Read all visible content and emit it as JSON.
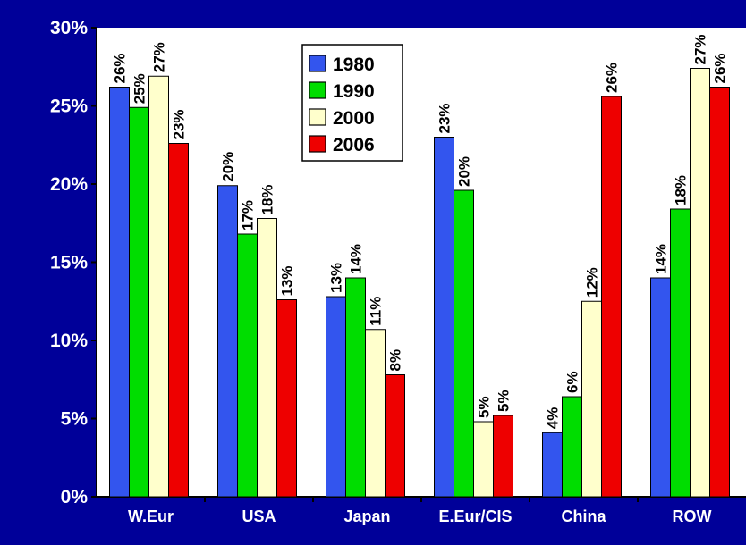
{
  "chart_data": {
    "type": "bar",
    "title": "",
    "xlabel": "",
    "ylabel": "",
    "categories": [
      "W.Eur",
      "USA",
      "Japan",
      "E.Eur/CIS",
      "China",
      "ROW"
    ],
    "series": [
      {
        "name": "1980",
        "color": "#3355ee",
        "values": [
          26.2,
          19.9,
          12.8,
          23.0,
          4.1,
          14.0
        ],
        "labels": [
          "26%",
          "20%",
          "13%",
          "23%",
          "4%",
          "14%"
        ]
      },
      {
        "name": "1990",
        "color": "#00dd00",
        "values": [
          24.9,
          16.8,
          14.0,
          19.6,
          6.4,
          18.4
        ],
        "labels": [
          "25%",
          "17%",
          "14%",
          "20%",
          "6%",
          "18%"
        ]
      },
      {
        "name": "2000",
        "color": "#ffffcc",
        "values": [
          26.9,
          17.8,
          10.7,
          4.8,
          12.5,
          27.4
        ],
        "labels": [
          "27%",
          "18%",
          "11%",
          "5%",
          "12%",
          "27%"
        ]
      },
      {
        "name": "2006",
        "color": "#ee0000",
        "values": [
          22.6,
          12.6,
          7.8,
          5.2,
          25.6,
          26.2
        ],
        "labels": [
          "23%",
          "13%",
          "8%",
          "5%",
          "26%",
          "26%"
        ]
      }
    ],
    "ylim": [
      0,
      30
    ],
    "yticks": [
      0,
      5,
      10,
      15,
      20,
      25,
      30
    ],
    "ytick_labels": [
      "0%",
      "5%",
      "10%",
      "15%",
      "20%",
      "25%",
      "30%"
    ],
    "grid": false,
    "legend_position": "top-center",
    "plot_background": "#ffffff",
    "page_background": "#000099"
  }
}
